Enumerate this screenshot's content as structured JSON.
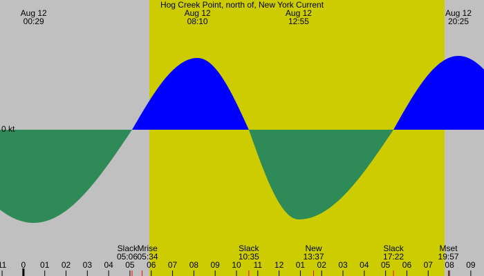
{
  "chart_data": {
    "type": "tide-current",
    "title": "Hog Creek Point, north of, New York Current",
    "unit_label": "0 kt",
    "colors": {
      "background": "#c0c0c0",
      "daylight": "#cccc00",
      "flood": "#0000ff",
      "ebb": "#2e8b57"
    },
    "daylight": [
      5.91,
      19.77
    ],
    "xlim": [
      -1.1,
      21.62
    ],
    "ylim": [
      -2.12,
      1.88
    ],
    "xticks": [
      {
        "value": -1,
        "label": "11"
      },
      0,
      {
        "value": 1,
        "label": "01"
      },
      {
        "value": 2,
        "label": "02"
      },
      {
        "value": 3,
        "label": "03"
      },
      {
        "value": 4,
        "label": "04"
      },
      {
        "value": 5,
        "label": "05"
      },
      {
        "value": 6,
        "label": "06"
      },
      {
        "value": 7,
        "label": "07"
      },
      {
        "value": 8,
        "label": "08"
      },
      {
        "value": 9,
        "label": "09"
      },
      10,
      11,
      12,
      {
        "value": 13,
        "label": "01"
      },
      {
        "value": 14,
        "label": "02"
      },
      {
        "value": 15,
        "label": "03"
      },
      {
        "value": 16,
        "label": "04"
      },
      {
        "value": 17,
        "label": "05"
      },
      {
        "value": 18,
        "label": "06"
      },
      {
        "value": 19,
        "label": "07"
      },
      {
        "value": 20,
        "label": "08"
      },
      {
        "value": 21,
        "label": "09"
      }
    ],
    "extremes": [
      {
        "date": "Aug 12",
        "time": "00:29",
        "x": 0.48,
        "value": -1.35
      },
      {
        "date": "Aug 12",
        "time": "08:10",
        "x": 8.17,
        "value": 1.04
      },
      {
        "date": "Aug 12",
        "time": "12:55",
        "x": 12.92,
        "value": -1.3
      },
      {
        "date": "Aug 12",
        "time": "20:25",
        "x": 20.42,
        "value": 1.07
      }
    ],
    "slacks": [
      5.1,
      10.58,
      17.37
    ],
    "events": [
      {
        "label": "Slack",
        "time": "05:06",
        "x": 5.1,
        "color": "#ff0000"
      },
      {
        "label": "Mrise",
        "time": "05:34",
        "x": 5.57,
        "color": "#ff0000"
      },
      {
        "label": "Slack",
        "time": "10:35",
        "x": 10.58,
        "color": "#ff0000"
      },
      {
        "label": "New",
        "time": "13:37",
        "x": 13.62,
        "color": "#ff0000"
      },
      {
        "label": "Slack",
        "time": "17:22",
        "x": 17.37,
        "color": "#ff0000"
      },
      {
        "label": "Mset",
        "time": "19:57",
        "x": 19.95,
        "color": "#800000"
      }
    ]
  }
}
